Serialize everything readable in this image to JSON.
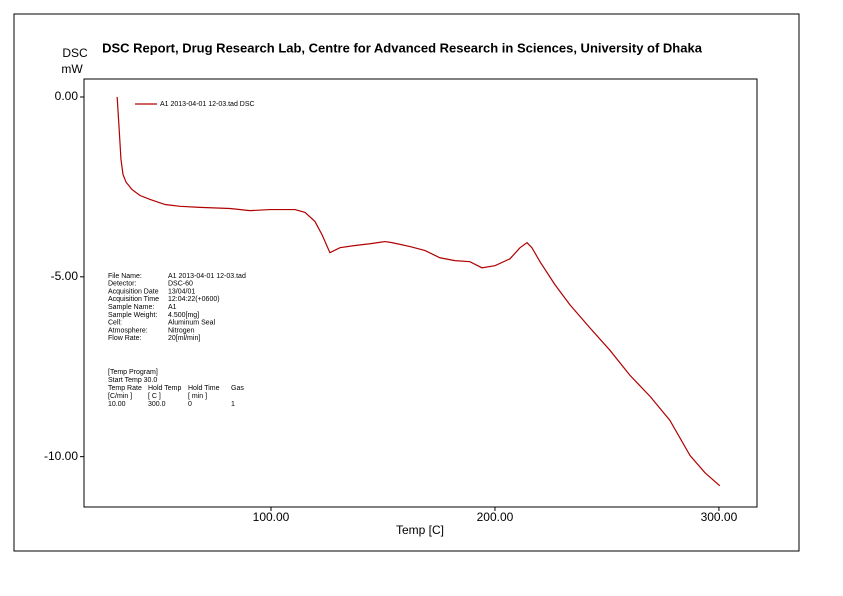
{
  "chart_data": {
    "type": "line",
    "title": "DSC Report, Drug Research Lab, Centre for Advanced Research in Sciences, University of Dhaka",
    "y_label": [
      "DSC",
      "mW"
    ],
    "x_label": "Temp  [C]",
    "xlim": [
      16.5,
      317
    ],
    "ylim": [
      -11.4,
      0.5
    ],
    "xticks": [
      {
        "value": 100,
        "label": "100.00"
      },
      {
        "value": 200,
        "label": "200.00"
      },
      {
        "value": 300,
        "label": "300.00"
      }
    ],
    "yticks": [
      {
        "value": 0,
        "label": "0.00"
      },
      {
        "value": -5,
        "label": "-5.00"
      },
      {
        "value": -10,
        "label": "-10.00"
      }
    ],
    "x": [
      31.3,
      32.2,
      33.0,
      33.9,
      35.3,
      37.9,
      41.5,
      46.0,
      52.7,
      59.4,
      68.3,
      81.7,
      90.6,
      99.6,
      110.7,
      115.2,
      119.6,
      122.8,
      126.3,
      130.8,
      137.5,
      144.2,
      150.9,
      154.0,
      162.1,
      168.8,
      175.4,
      182.1,
      188.8,
      194.2,
      200.0,
      206.7,
      211.2,
      214.3,
      216.5,
      220.1,
      226.8,
      233.5,
      242.4,
      251.3,
      260.3,
      269.2,
      278.1,
      287.1,
      293.8,
      300.4
    ],
    "series": [
      {
        "name": "A1 2013-04-01 12-03.tad  DSC",
        "color": "#b00000",
        "values": [
          0,
          -0.89,
          -1.73,
          -2.15,
          -2.37,
          -2.57,
          -2.74,
          -2.85,
          -2.99,
          -3.04,
          -3.07,
          -3.1,
          -3.16,
          -3.13,
          -3.13,
          -3.21,
          -3.46,
          -3.83,
          -4.33,
          -4.19,
          -4.13,
          -4.08,
          -4.02,
          -4.05,
          -4.16,
          -4.27,
          -4.47,
          -4.55,
          -4.58,
          -4.75,
          -4.69,
          -4.5,
          -4.19,
          -4.05,
          -4.19,
          -4.58,
          -5.22,
          -5.78,
          -6.42,
          -7.04,
          -7.74,
          -8.32,
          -8.99,
          -9.97,
          -10.45,
          -10.81
        ]
      }
    ],
    "info": [
      {
        "label": "File Name:",
        "value": "A1 2013-04-01 12-03.tad"
      },
      {
        "label": "Detector:",
        "value": "DSC-60"
      },
      {
        "label": "Acquisition Date",
        "value": "13/04/01"
      },
      {
        "label": "Acquisition Time",
        "value": "12:04:22(+0600)"
      },
      {
        "label": "Sample Name:",
        "value": "A1"
      },
      {
        "label": "Sample Weight:",
        "value": "4.500[mg]"
      },
      {
        "label": "Cell:",
        "value": "Aluminum Seal"
      },
      {
        "label": "Atmosphere:",
        "value": "Nitrogen"
      },
      {
        "label": "Flow Rate:",
        "value": "20[ml/min]"
      }
    ],
    "temp_program": {
      "title": "[Temp Program]",
      "start_temp": "Start Temp   30.0",
      "header": [
        "Temp Rate",
        "Hold Temp",
        "Hold Time",
        "Gas"
      ],
      "units": [
        "[C/min ]",
        "[  C  ]",
        "[  min  ]"
      ],
      "row": [
        "10.00",
        "300.0",
        "0",
        "1"
      ]
    }
  }
}
